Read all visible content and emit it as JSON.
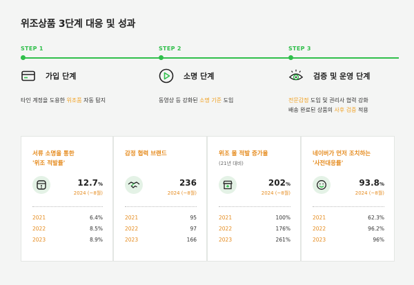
{
  "title": "위조상품 3단계 대응 및 성과",
  "colors": {
    "accent_green": "#2fbf4a",
    "highlight_orange": "#f0a020",
    "card_title_orange": "#e58a1c"
  },
  "steps": [
    {
      "label": "STEP 1",
      "icon": "card-icon",
      "heading": "가입 단계",
      "desc_parts": [
        "타인 계정을 도용한 ",
        "위조품",
        " 자동 탐지"
      ]
    },
    {
      "label": "STEP 2",
      "icon": "play-icon",
      "heading": "소명 단계",
      "desc_parts": [
        "동영상 등 강화된 ",
        "소명 기준",
        " 도입"
      ]
    },
    {
      "label": "STEP 3",
      "icon": "eye-icon",
      "heading": "검증 및 운영 단계",
      "desc_line1": "전문감정 도입 및 권리사 협력 강화",
      "desc_line1_hl": "전문감정",
      "desc_line2_parts": [
        "배송 완료된 상품의 ",
        "사후 검증",
        " 적용"
      ]
    }
  ],
  "cards": [
    {
      "title_line1": "서류 소명을 통한",
      "title_line2": "'위조 적발률'",
      "subtitle": "",
      "icon": "document-alert-icon",
      "big_value": "12.7",
      "big_unit": "%",
      "period": "2024 (~8월)",
      "rows": [
        {
          "year": "2021",
          "value": "6.4%"
        },
        {
          "year": "2022",
          "value": "8.5%"
        },
        {
          "year": "2023",
          "value": "8.9%"
        }
      ]
    },
    {
      "title_line1": "감정 협력 브랜드",
      "title_line2": "",
      "subtitle": "",
      "icon": "handshake-icon",
      "big_value": "236",
      "big_unit": "",
      "period": "2024 (~8월)",
      "rows": [
        {
          "year": "2021",
          "value": "95"
        },
        {
          "year": "2022",
          "value": "97"
        },
        {
          "year": "2023",
          "value": "166"
        }
      ]
    },
    {
      "title_line1": "위조 몰 적발 증가율",
      "title_line2": "",
      "subtitle": "(21년 대비)",
      "icon": "store-icon",
      "big_value": "202",
      "big_unit": "%",
      "period": "2024 (~8월)",
      "rows": [
        {
          "year": "2021",
          "value": "100%"
        },
        {
          "year": "2022",
          "value": "176%"
        },
        {
          "year": "2023",
          "value": "261%"
        }
      ]
    },
    {
      "title_line1": "네이버가 먼저 조치하는",
      "title_line2": "'사전대응률'",
      "subtitle": "",
      "icon": "smile-icon",
      "big_value": "93.8",
      "big_unit": "%",
      "period": "2024 (~8월)",
      "rows": [
        {
          "year": "2021",
          "value": "62.3%"
        },
        {
          "year": "2022",
          "value": "96.2%"
        },
        {
          "year": "2023",
          "value": "96%"
        }
      ]
    }
  ]
}
